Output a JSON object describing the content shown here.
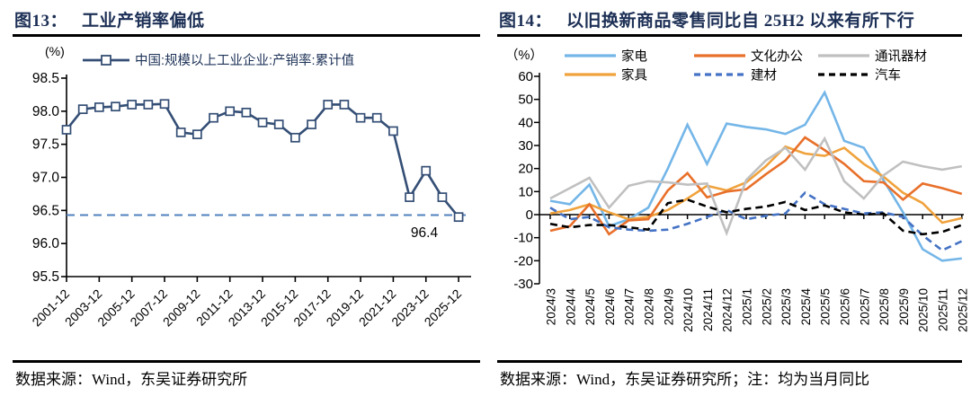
{
  "figure13": {
    "title_prefix": "图13：",
    "title": "工业产销率偏低",
    "source": "数据来源：Wind，东吴证券研究所"
  },
  "figure14": {
    "title_prefix": "图14：",
    "title": "以旧换新商品零售同比自 25H2 以来有所下行",
    "source": "数据来源：Wind，东吴证券研究所；注：均为当月同比"
  },
  "chart_data": [
    {
      "type": "line",
      "title": "工业产销率偏低",
      "unit_label": "(%)",
      "legend": [
        "中国:规模以上工业企业:产销率:累计值"
      ],
      "x": [
        "2001-12",
        "2002-12",
        "2003-12",
        "2004-12",
        "2005-12",
        "2006-12",
        "2007-12",
        "2008-12",
        "2009-12",
        "2010-12",
        "2011-12",
        "2012-12",
        "2013-12",
        "2014-12",
        "2015-12",
        "2016-12",
        "2017-12",
        "2018-12",
        "2019-12",
        "2020-12",
        "2021-12",
        "2022-12",
        "2023-12",
        "2024-12",
        "2025-12"
      ],
      "xtick_labels": [
        "2001-12",
        "2003-12",
        "2005-12",
        "2007-12",
        "2009-12",
        "2011-12",
        "2013-12",
        "2015-12",
        "2017-12",
        "2019-12",
        "2021-12",
        "2023-12",
        "2025-12"
      ],
      "values": [
        97.72,
        98.03,
        98.06,
        98.07,
        98.1,
        98.1,
        98.11,
        97.68,
        97.65,
        97.9,
        98.0,
        97.98,
        97.83,
        97.8,
        97.6,
        97.8,
        98.1,
        98.1,
        97.9,
        97.9,
        97.7,
        96.7,
        97.1,
        96.7,
        96.4
      ],
      "ylim": [
        95.5,
        98.5
      ],
      "yticks": [
        "98.5",
        "98.0",
        "97.5",
        "97.0",
        "96.5",
        "96.0",
        "95.5"
      ],
      "line_color": "#344e75",
      "marker": "square-hollow",
      "hline": {
        "value": 96.43,
        "label": "96.4",
        "color": "#4f81bd",
        "style": "dashed"
      },
      "grid": false,
      "legend_position": "top"
    },
    {
      "type": "line",
      "title": "以旧换新商品零售同比自 25H2 以来有所下行",
      "unit_label": "（%）",
      "categories": [
        "2024/3",
        "2024/4",
        "2024/5",
        "2024/6",
        "2024/7",
        "2024/8",
        "2024/9",
        "2024/10",
        "2024/11",
        "2024/12",
        "2025/1",
        "2025/2",
        "2025/3",
        "2025/4",
        "2025/5",
        "2025/6",
        "2025/7",
        "2025/8",
        "2025/9",
        "2025/10",
        "2025/11",
        "2025/12"
      ],
      "ylim": [
        -30,
        60
      ],
      "yticks": [
        "60",
        "50",
        "40",
        "30",
        "20",
        "10",
        "0",
        "-10",
        "-20",
        "-30"
      ],
      "grid": false,
      "legend_position": "top",
      "series": [
        {
          "name": "家电",
          "color": "#74b6e8",
          "dash": false,
          "values": [
            6,
            4.5,
            13,
            -5,
            -2,
            3,
            20,
            39,
            22,
            39.5,
            38,
            37,
            35,
            39,
            53,
            32,
            29,
            15,
            1,
            -15,
            -20,
            -19
          ]
        },
        {
          "name": "家具",
          "color": "#f0a23c",
          "dash": false,
          "values": [
            0.5,
            2,
            4.5,
            1,
            -2,
            -1,
            2,
            7,
            12.5,
            10.5,
            14,
            21,
            29.5,
            26.5,
            25.5,
            29,
            22,
            16.5,
            9.5,
            5,
            -3.5,
            -1.5
          ]
        },
        {
          "name": "文化办公",
          "color": "#e8702a",
          "dash": false,
          "values": [
            -7,
            -5,
            4.5,
            -8.5,
            -2.5,
            -2,
            10.5,
            18,
            7.5,
            10,
            11,
            17.5,
            23.5,
            33.5,
            28,
            22,
            14.5,
            14,
            6.5,
            13.5,
            11.5,
            9
          ]
        },
        {
          "name": "建材",
          "color": "#4472c4",
          "dash": true,
          "values": [
            3,
            -2,
            -1,
            -5.5,
            -6.5,
            -7,
            -6.5,
            -4,
            -1,
            2,
            -2,
            -0.5,
            0.5,
            9.5,
            4.5,
            2.5,
            0.5,
            1,
            -1,
            -9,
            -15.5,
            -11.5
          ]
        },
        {
          "name": "通讯器材",
          "color": "#c0c0c0",
          "dash": false,
          "values": [
            7,
            11.5,
            16,
            3,
            12.5,
            14.5,
            14,
            13,
            13.5,
            -8,
            15,
            23.5,
            29,
            19.5,
            33,
            14.5,
            7,
            17,
            23,
            21,
            19.5,
            21
          ]
        },
        {
          "name": "汽车",
          "color": "#000000",
          "dash": true,
          "values": [
            -4,
            -5.5,
            -4.5,
            -4.5,
            -5.5,
            -6.5,
            5,
            6.5,
            3.5,
            1,
            2.5,
            3.5,
            5.5,
            2,
            4,
            1,
            0,
            0.5,
            -7,
            -8.5,
            -7.5,
            -4.5
          ]
        }
      ]
    }
  ]
}
